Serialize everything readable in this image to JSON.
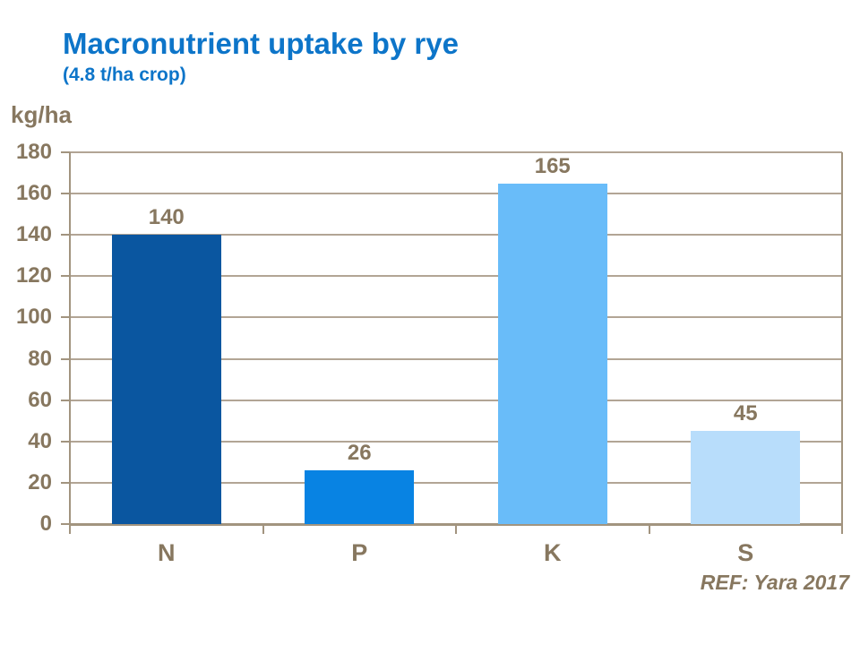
{
  "title": "Macronutrient uptake by rye",
  "subtitle": "(4.8 t/ha crop)",
  "axis_unit_label": "kg/ha",
  "ref_note": "REF: Yara 2017",
  "colors": {
    "title_blue": "#0d75c9",
    "label_brown": "#87775f",
    "gridline": "#b2a595",
    "axis": "#a2947f",
    "bar_colors": [
      "#0a56a0",
      "#0883e3",
      "#69bcf9",
      "#b8ddfb"
    ]
  },
  "chart_data": {
    "type": "bar",
    "categories": [
      "N",
      "P",
      "K",
      "S"
    ],
    "values": [
      140,
      26,
      165,
      45
    ],
    "data_labels": [
      "140",
      "26",
      "165",
      "45"
    ],
    "title": "Macronutrient uptake by rye (4.8 t/ha crop)",
    "xlabel": "",
    "ylabel": "kg/ha",
    "ylim": [
      0,
      180
    ],
    "yticks": [
      0,
      20,
      40,
      60,
      80,
      100,
      120,
      140,
      160,
      180
    ],
    "grid": true,
    "legend": "none",
    "bar_colors": [
      "#0a56a0",
      "#0883e3",
      "#69bcf9",
      "#b8ddfb"
    ]
  }
}
